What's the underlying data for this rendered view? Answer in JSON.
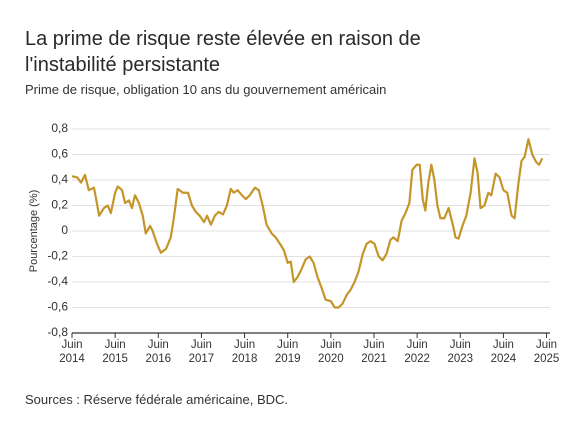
{
  "chart_data": {
    "type": "line",
    "title": "La prime de risque reste élevée en raison de l'instabilité persistante",
    "subtitle": "Prime de risque, obligation 10 ans du gouvernement américain",
    "y_label": "Pourcentage (%)",
    "source": "Sources : Réserve fédérale américaine, BDC.",
    "grid": true,
    "ylim": [
      -0.8,
      0.8
    ],
    "yticks": [
      {
        "value": 0.8,
        "label": "0,8"
      },
      {
        "value": 0.6,
        "label": "0,6"
      },
      {
        "value": 0.4,
        "label": "0,4"
      },
      {
        "value": 0.2,
        "label": "0,2"
      },
      0,
      {
        "value": -0.2,
        "label": "-0,2"
      },
      {
        "value": -0.4,
        "label": "-0,4"
      },
      {
        "value": -0.6,
        "label": "-0,6"
      },
      {
        "value": -0.8,
        "label": "-0,8"
      }
    ],
    "xlim": [
      2014.42,
      2025.5
    ],
    "xticks": [
      {
        "value": 2014.42,
        "label": "Juin 2014"
      },
      {
        "value": 2015.42,
        "label": "Juin 2015"
      },
      {
        "value": 2016.42,
        "label": "Juin 2016"
      },
      {
        "value": 2017.42,
        "label": "Juin 2017"
      },
      {
        "value": 2018.42,
        "label": "Juin 2018"
      },
      {
        "value": 2019.42,
        "label": "Juin 2019"
      },
      {
        "value": 2020.42,
        "label": "Juin 2020"
      },
      {
        "value": 2021.42,
        "label": "Juin 2021"
      },
      {
        "value": 2022.42,
        "label": "Juin 2022"
      },
      {
        "value": 2023.42,
        "label": "Juin 2023"
      },
      {
        "value": 2024.42,
        "label": "Juin 2024"
      },
      {
        "value": 2025.42,
        "label": "Juin 2025"
      }
    ],
    "x": [
      2014.42,
      2014.54,
      2014.63,
      2014.72,
      2014.81,
      2014.93,
      2015.05,
      2015.16,
      2015.25,
      2015.32,
      2015.42,
      2015.48,
      2015.58,
      2015.65,
      2015.74,
      2015.81,
      2015.88,
      2015.97,
      2016.06,
      2016.13,
      2016.23,
      2016.29,
      2016.39,
      2016.48,
      2016.6,
      2016.71,
      2016.78,
      2016.87,
      2016.99,
      2017.11,
      2017.2,
      2017.29,
      2017.38,
      2017.48,
      2017.55,
      2017.64,
      2017.73,
      2017.82,
      2017.92,
      2018.01,
      2018.1,
      2018.17,
      2018.26,
      2018.36,
      2018.45,
      2018.54,
      2018.66,
      2018.75,
      2018.84,
      2018.93,
      2019.05,
      2019.14,
      2019.24,
      2019.33,
      2019.42,
      2019.49,
      2019.56,
      2019.65,
      2019.74,
      2019.84,
      2019.93,
      2020.02,
      2020.11,
      2020.21,
      2020.3,
      2020.42,
      2020.51,
      2020.6,
      2020.69,
      2020.79,
      2020.88,
      2020.97,
      2021.06,
      2021.16,
      2021.25,
      2021.34,
      2021.43,
      2021.53,
      2021.62,
      2021.71,
      2021.8,
      2021.87,
      2021.97,
      2022.06,
      2022.15,
      2022.24,
      2022.31,
      2022.41,
      2022.48,
      2022.55,
      2022.61,
      2022.68,
      2022.75,
      2022.82,
      2022.89,
      2022.96,
      2023.05,
      2023.15,
      2023.24,
      2023.31,
      2023.38,
      2023.47,
      2023.56,
      2023.66,
      2023.75,
      2023.82,
      2023.89,
      2023.98,
      2024.07,
      2024.14,
      2024.24,
      2024.33,
      2024.42,
      2024.51,
      2024.61,
      2024.68,
      2024.77,
      2024.84,
      2024.91,
      2025.0,
      2025.09,
      2025.18,
      2025.25,
      2025.32
    ],
    "series": [
      {
        "name": "Prime de risque",
        "color": "#c4962a",
        "values": [
          0.43,
          0.42,
          0.38,
          0.44,
          0.32,
          0.34,
          0.12,
          0.18,
          0.2,
          0.14,
          0.3,
          0.35,
          0.32,
          0.22,
          0.24,
          0.18,
          0.28,
          0.22,
          0.12,
          -0.02,
          0.04,
          0.0,
          -0.1,
          -0.17,
          -0.14,
          -0.05,
          0.1,
          0.33,
          0.3,
          0.3,
          0.2,
          0.15,
          0.12,
          0.07,
          0.12,
          0.05,
          0.12,
          0.15,
          0.13,
          0.2,
          0.33,
          0.3,
          0.32,
          0.28,
          0.25,
          0.28,
          0.34,
          0.32,
          0.2,
          0.05,
          -0.02,
          -0.05,
          -0.1,
          -0.15,
          -0.25,
          -0.24,
          -0.4,
          -0.36,
          -0.3,
          -0.22,
          -0.2,
          -0.25,
          -0.36,
          -0.45,
          -0.54,
          -0.55,
          -0.6,
          -0.6,
          -0.57,
          -0.5,
          -0.46,
          -0.4,
          -0.32,
          -0.18,
          -0.1,
          -0.08,
          -0.1,
          -0.2,
          -0.23,
          -0.18,
          -0.07,
          -0.05,
          -0.08,
          0.08,
          0.14,
          0.22,
          0.48,
          0.52,
          0.52,
          0.25,
          0.16,
          0.38,
          0.52,
          0.4,
          0.2,
          0.1,
          0.1,
          0.18,
          0.06,
          -0.05,
          -0.06,
          0.04,
          0.12,
          0.3,
          0.57,
          0.46,
          0.18,
          0.2,
          0.3,
          0.28,
          0.45,
          0.42,
          0.32,
          0.3,
          0.12,
          0.1,
          0.38,
          0.55,
          0.58,
          0.72,
          0.6,
          0.54,
          0.52,
          0.57
        ]
      }
    ]
  }
}
